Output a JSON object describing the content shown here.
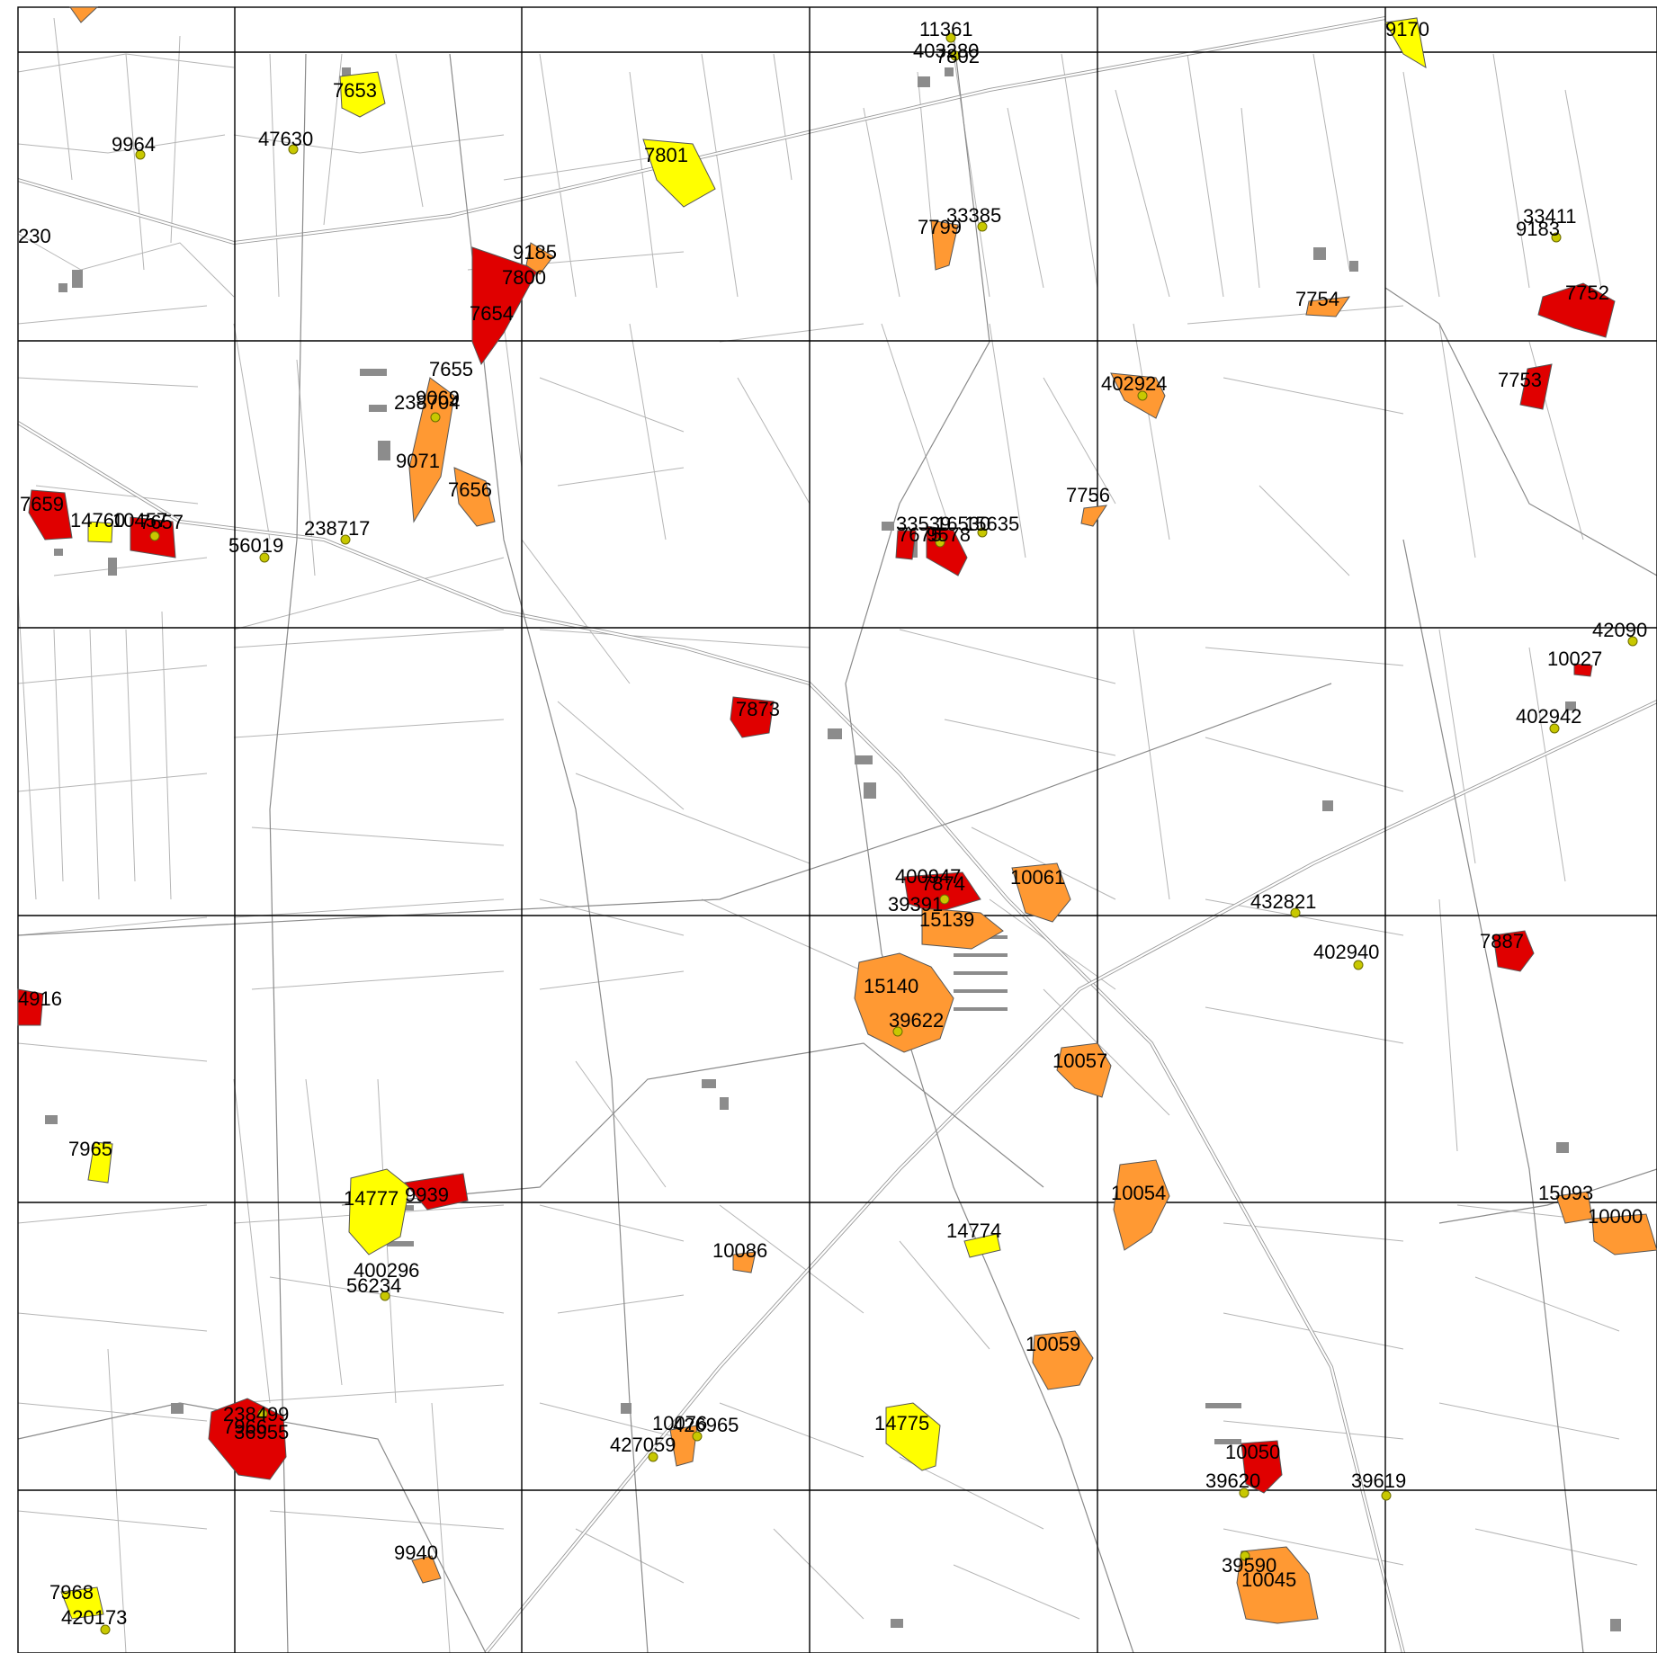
{
  "colors": {
    "red": "#e00000",
    "orange": "#ff9933",
    "yellow": "#ffff00",
    "pin": "#c8c800",
    "road": "#8a8a8a",
    "parcel": "#b5b5b5",
    "grid": "#000000"
  },
  "legend_icons": [
    "location-pin-icon"
  ],
  "labels": {
    "l1": "11361",
    "l2": "403280",
    "l3": "7802",
    "l4": "9170",
    "l5": "7653",
    "l6": "47630",
    "l7": "9964",
    "l8": "7801",
    "l9": "230",
    "l10": "7799",
    "l11": "33385",
    "l12": "33411",
    "l13": "9183",
    "l14": "9185",
    "l15": "7800",
    "l16": "7654",
    "l17": "7754",
    "l18": "7752",
    "l19": "7655",
    "l20": "238704",
    "l21": "9069",
    "l22": "402924",
    "l23": "7753",
    "l24": "9071",
    "l25": "7656",
    "l26": "7756",
    "l27": "7659",
    "l28": "14760",
    "l29": "10457",
    "l30": "7657",
    "l31": "238717",
    "l32": "56019",
    "l33": "33539",
    "l34": "16530",
    "l35": "15635",
    "l36": "7675",
    "l37": "9578",
    "l38": "42090",
    "l39": "10027",
    "l40": "402942",
    "l41": "7873",
    "l42": "400947",
    "l43": "7874",
    "l44": "10061",
    "l45": "39391",
    "l46": "15139",
    "l47": "432821",
    "l48": "402940",
    "l49": "7887",
    "l50": "4916",
    "l51": "15140",
    "l52": "39622",
    "l53": "10057",
    "l54": "7965",
    "l55": "10054",
    "l56": "15093",
    "l57": "10000",
    "l58": "14777",
    "l59": "9939",
    "l60": "14774",
    "l61": "10086",
    "l62": "400296",
    "l63": "56234",
    "l64": "10059",
    "l65": "238499",
    "l66": "7966",
    "l67": "36955",
    "l68": "10076",
    "l69": "426965",
    "l70": "427059",
    "l71": "14775",
    "l72": "10050",
    "l73": "39620",
    "l74": "39619",
    "l75": "9940",
    "l76": "39590",
    "l77": "10045",
    "l78": "7968",
    "l79": "420173"
  }
}
